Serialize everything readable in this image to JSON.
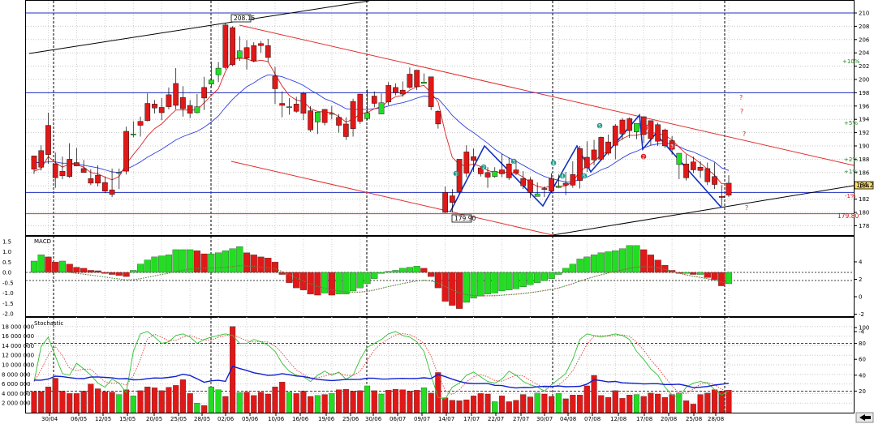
{
  "chart_data": [
    {
      "type": "candlestick",
      "panel": "price",
      "ylim": [
        176.5,
        211
      ],
      "y_ticks": [
        178,
        180,
        182,
        184,
        186,
        188,
        190,
        192,
        194,
        196,
        198,
        200,
        202,
        204,
        206,
        208,
        210
      ],
      "tick_labels": [
        "178",
        "180",
        "182",
        "184",
        "186",
        "188",
        "190",
        "192",
        "194",
        "196",
        "198",
        "200",
        "202",
        "204",
        "206",
        "208",
        "210"
      ],
      "x_labels": [
        "30/04",
        "06/05",
        "12/05",
        "15/05",
        "20/05",
        "25/05",
        "28/05",
        "02/06",
        "05/06",
        "10/06",
        "16/06",
        "19/06",
        "25/06",
        "30/06",
        "06/07",
        "09/07",
        "14/07",
        "17/07",
        "22/07",
        "27/07",
        "30/07",
        "04/08",
        "07/08",
        "12/08",
        "17/08",
        "20/08",
        "25/08",
        "28/08"
      ],
      "candles": [
        [
          188.5,
          187.0,
          186.5,
          185.8
        ],
        [
          189.3,
          190.1,
          186.8,
          186.3
        ],
        [
          193.1,
          195.0,
          188.7,
          187.3
        ],
        [
          187.3,
          189.0,
          185.2,
          183.7
        ],
        [
          186.2,
          188.4,
          185.5,
          185.0
        ],
        [
          188.0,
          190.4,
          185.4,
          185.2
        ],
        [
          187.5,
          189.7,
          187.0,
          187.0
        ],
        [
          186.6,
          187.9,
          186.0,
          186.0
        ],
        [
          185.1,
          186.5,
          184.4,
          184.1
        ],
        [
          185.6,
          187.1,
          184.4,
          183.9
        ],
        [
          184.5,
          185.4,
          183.2,
          182.9
        ],
        [
          183.4,
          186.6,
          182.7,
          182.3
        ],
        [
          186.0,
          186.6,
          186.0,
          183.5
        ],
        [
          192.2,
          192.9,
          186.2,
          185.7
        ],
        [
          191.7,
          193.7,
          191.8,
          191.3
        ],
        [
          193.7,
          194.4,
          193.1,
          191.4
        ],
        [
          196.4,
          197.9,
          193.8,
          193.7
        ],
        [
          196.3,
          196.9,
          195.7,
          194.9
        ],
        [
          195.8,
          197.2,
          195.0,
          193.9
        ],
        [
          197.7,
          198.8,
          195.9,
          195.5
        ],
        [
          199.4,
          201.7,
          196.1,
          195.5
        ],
        [
          197.3,
          199.0,
          195.6,
          194.4
        ],
        [
          196.1,
          196.9,
          194.9,
          194.2
        ],
        [
          195.0,
          197.8,
          195.9,
          194.9
        ],
        [
          198.8,
          200.4,
          197.2,
          195.4
        ],
        [
          199.3,
          202.7,
          199.9,
          198.8
        ],
        [
          200.7,
          202.6,
          201.7,
          199.6
        ],
        [
          208.2,
          208.5,
          201.8,
          201.5
        ],
        [
          207.8,
          208.0,
          202.2,
          202.0
        ],
        [
          203.2,
          206.5,
          204.3,
          202.8
        ],
        [
          204.8,
          205.9,
          203.2,
          201.5
        ],
        [
          205.1,
          205.6,
          202.8,
          202.6
        ],
        [
          205.4,
          205.8,
          205.1,
          204.0
        ],
        [
          205.1,
          206.1,
          203.3,
          202.6
        ],
        [
          200.5,
          201.9,
          198.6,
          196.3
        ],
        [
          196.4,
          198.2,
          196.1,
          194.3
        ],
        [
          195.9,
          197.2,
          195.9,
          194.7
        ],
        [
          196.3,
          197.4,
          195.2,
          195.0
        ],
        [
          197.9,
          198.1,
          194.9,
          193.9
        ],
        [
          195.3,
          196.0,
          192.4,
          192.1
        ],
        [
          193.6,
          194.9,
          195.1,
          191.8
        ],
        [
          195.5,
          195.4,
          193.5,
          193.1
        ],
        [
          194.9,
          196.0,
          194.9,
          194.0
        ],
        [
          194.3,
          194.8,
          193.1,
          192.0
        ],
        [
          193.3,
          194.3,
          191.4,
          190.9
        ],
        [
          196.7,
          197.1,
          192.6,
          191.4
        ],
        [
          197.8,
          197.8,
          193.7,
          193.3
        ],
        [
          194.1,
          198.5,
          195.0,
          193.9
        ],
        [
          197.5,
          198.2,
          196.4,
          195.8
        ],
        [
          194.8,
          197.9,
          196.5,
          196.2
        ],
        [
          199.1,
          199.6,
          196.6,
          196.1
        ],
        [
          198.8,
          199.4,
          198.0,
          197.6
        ],
        [
          198.4,
          199.7,
          197.8,
          197.4
        ],
        [
          200.8,
          201.8,
          198.8,
          198.6
        ],
        [
          201.4,
          201.2,
          198.9,
          198.4
        ],
        [
          199.4,
          200.9,
          199.6,
          199.6
        ],
        [
          200.4,
          199.8,
          195.9,
          195.4
        ],
        [
          195.2,
          195.4,
          193.3,
          192.6
        ],
        [
          183.0,
          183.9,
          180.0,
          179.9
        ],
        [
          182.5,
          183.5,
          181.5,
          180.0
        ],
        [
          188.0,
          187.0,
          183.1,
          182.8
        ],
        [
          189.1,
          190.1,
          185.9,
          185.3
        ],
        [
          188.4,
          189.6,
          187.8,
          186.1
        ],
        [
          186.7,
          186.9,
          185.8,
          185.4
        ],
        [
          186.0,
          186.8,
          185.3,
          183.7
        ],
        [
          185.4,
          186.8,
          186.2,
          185.2
        ],
        [
          186.4,
          188.8,
          185.8,
          185.3
        ],
        [
          187.3,
          188.2,
          185.2,
          184.9
        ],
        [
          186.4,
          187.9,
          185.9,
          185.6
        ],
        [
          185.1,
          186.2,
          184.0,
          183.5
        ],
        [
          184.9,
          185.3,
          183.0,
          182.2
        ],
        [
          182.4,
          184.5,
          182.8,
          182.5
        ],
        [
          183.6,
          183.9,
          183.5,
          182.3
        ],
        [
          185.1,
          185.9,
          183.2,
          182.9
        ],
        [
          183.8,
          185.7,
          183.9,
          183.7
        ],
        [
          184.4,
          186.1,
          184.1,
          182.6
        ],
        [
          185.7,
          187.7,
          184.1,
          183.7
        ],
        [
          189.6,
          190.0,
          184.8,
          183.6
        ],
        [
          188.3,
          190.7,
          186.7,
          186.1
        ],
        [
          189.4,
          190.9,
          187.9,
          187.1
        ],
        [
          191.3,
          191.4,
          188.0,
          187.8
        ],
        [
          190.6,
          191.7,
          188.9,
          188.6
        ],
        [
          193.0,
          193.3,
          190.1,
          188.0
        ],
        [
          193.9,
          194.2,
          191.8,
          190.9
        ],
        [
          194.1,
          194.3,
          192.3,
          191.2
        ],
        [
          192.1,
          192.1,
          193.4,
          191.0
        ],
        [
          194.4,
          194.0,
          191.7,
          190.4
        ],
        [
          193.8,
          193.8,
          191.1,
          190.1
        ],
        [
          193.2,
          193.5,
          190.7,
          190.0
        ],
        [
          192.4,
          192.6,
          190.0,
          189.7
        ],
        [
          190.8,
          191.5,
          189.5,
          188.7
        ],
        [
          187.2,
          187.4,
          188.9,
          185.0
        ],
        [
          187.3,
          188.7,
          185.2,
          184.8
        ],
        [
          187.6,
          188.4,
          186.4,
          185.9
        ],
        [
          186.8,
          187.7,
          186.3,
          185.2
        ],
        [
          186.6,
          187.5,
          184.6,
          184.1
        ],
        [
          185.4,
          187.5,
          184.2,
          183.5
        ],
        [
          182.4,
          184.1,
          182.3,
          180.9
        ],
        [
          184.4,
          185.6,
          182.6,
          182.3
        ]
      ],
      "ma_short": [
        186.2,
        186.6,
        188.4,
        187.5,
        186.8,
        187.3,
        187.2,
        186.8,
        186.0,
        185.8,
        185.3,
        184.9,
        185.4,
        187.3,
        188.7,
        190.0,
        191.5,
        192.6,
        193.3,
        194.4,
        195.4,
        195.4,
        195.4,
        195.4,
        196.5,
        197.6,
        198.6,
        201.2,
        203.0,
        203.2,
        203.1,
        202.7,
        202.9,
        202.7,
        200.8,
        199.0,
        197.6,
        196.9,
        196.7,
        195.6,
        195.2,
        195.1,
        195.0,
        194.4,
        193.6,
        194.0,
        194.8,
        195.0,
        195.6,
        195.9,
        196.8,
        197.4,
        197.6,
        198.4,
        198.9,
        199.1,
        198.0,
        196.6,
        192.0,
        188.3,
        187.2,
        187.0,
        187.3,
        186.9,
        186.3,
        186.0,
        186.1,
        186.0,
        185.9,
        185.3,
        184.5,
        183.9,
        183.7,
        184.0,
        183.9,
        184.0,
        184.6,
        186.2,
        186.9,
        187.6,
        188.7,
        189.2,
        190.3,
        191.1,
        191.6,
        191.6,
        191.9,
        192.0,
        191.9,
        191.6,
        190.9,
        189.8,
        188.8,
        188.2,
        187.4,
        186.5,
        185.6,
        184.3,
        184.3
      ],
      "ma_long": [
        187.5,
        187.5,
        187.6,
        187.6,
        187.4,
        187.4,
        187.3,
        187.1,
        186.9,
        186.7,
        186.4,
        186.1,
        186.0,
        186.5,
        187.0,
        187.6,
        188.3,
        188.9,
        189.5,
        190.2,
        190.9,
        191.4,
        191.8,
        192.2,
        192.8,
        193.6,
        194.5,
        195.8,
        197.0,
        198.0,
        198.9,
        199.5,
        200.2,
        200.7,
        200.6,
        200.4,
        200.0,
        199.6,
        199.1,
        198.4,
        197.8,
        197.1,
        196.7,
        196.2,
        195.6,
        195.5,
        195.5,
        195.5,
        195.6,
        195.7,
        196.0,
        196.3,
        196.5,
        196.8,
        197.2,
        197.5,
        197.4,
        197.1,
        195.9,
        194.6,
        193.6,
        192.7,
        192.0,
        191.2,
        190.4,
        189.5,
        188.8,
        188.2,
        187.7,
        187.1,
        186.5,
        185.9,
        185.4,
        185.1,
        184.8,
        184.6,
        184.6,
        185.0,
        185.3,
        185.8,
        186.4,
        186.8,
        187.5,
        188.2,
        188.8,
        189.2,
        189.7,
        190.1,
        190.3,
        190.4,
        190.3,
        189.9,
        189.4,
        189.1,
        188.6,
        188.1,
        187.6,
        186.7,
        186.3
      ],
      "annotations": {
        "high_label": "208.15",
        "low_label": "179.90",
        "last_price": "184.22",
        "support_label": "179.80",
        "pct_labels": [
          "+10%",
          "+5%",
          "+2%",
          "+1%",
          "-1%"
        ],
        "wave_numbers": [
          "1",
          "2",
          "3",
          "4",
          "5",
          "1",
          "2",
          "3",
          "4",
          "5"
        ],
        "question_marks": [
          "?",
          "?",
          "?",
          "?"
        ]
      }
    },
    {
      "type": "bar",
      "panel": "macd",
      "title": "MACD",
      "tick_labels": [
        "1.5",
        "1.0",
        "0.5",
        "0.0",
        "-0.5",
        "-1.0",
        "-1.5",
        "-2.0"
      ],
      "right_tick_labels": [
        "4",
        "2",
        "0",
        "-2",
        "-4"
      ],
      "values": [
        0.55,
        0.85,
        0.75,
        0.5,
        0.55,
        0.4,
        0.25,
        0.2,
        0.1,
        0.08,
        -0.05,
        -0.1,
        -0.15,
        -0.2,
        0.1,
        0.4,
        0.6,
        0.75,
        0.8,
        0.85,
        1.1,
        1.1,
        1.1,
        1.05,
        0.9,
        0.9,
        0.95,
        1.05,
        1.15,
        1.25,
        0.95,
        0.85,
        0.75,
        0.7,
        0.5,
        -0.1,
        -0.5,
        -0.75,
        -0.85,
        -1.05,
        -1.1,
        -1.0,
        -1.1,
        -1.05,
        -1.05,
        -0.9,
        -0.75,
        -0.55,
        -0.3,
        -0.05,
        0.05,
        0.1,
        0.2,
        0.25,
        0.3,
        0.2,
        -0.2,
        -0.75,
        -1.4,
        -1.6,
        -1.75,
        -1.45,
        -1.25,
        -1.15,
        -1.05,
        -1.0,
        -0.9,
        -0.85,
        -0.8,
        -0.7,
        -0.6,
        -0.5,
        -0.4,
        -0.3,
        -0.1,
        0.2,
        0.4,
        0.65,
        0.75,
        0.85,
        0.95,
        1.0,
        1.05,
        1.15,
        1.3,
        1.3,
        1.1,
        0.85,
        0.6,
        0.35,
        0.1,
        -0.05,
        -0.05,
        -0.1,
        -0.1,
        -0.25,
        -0.35,
        -0.65,
        -0.55
      ]
    },
    {
      "type": "bar",
      "panel": "volume",
      "title": "Stochastic",
      "tick_labels": [
        "18 000 000",
        "16 000 000",
        "14 000 000",
        "12 000 000",
        "10 000 000",
        "8 000 000",
        "6 000 000",
        "4 000 000",
        "2 000 000"
      ],
      "right_tick_labels": [
        "100",
        "80",
        "60",
        "40",
        "20"
      ],
      "values": [
        4.4,
        4.4,
        5.4,
        7.2,
        4.5,
        4.0,
        4.0,
        4.5,
        6.0,
        5.0,
        4.4,
        4.3,
        3.8,
        4.8,
        3.5,
        4.6,
        5.4,
        5.2,
        4.6,
        5.3,
        5.7,
        6.9,
        4.0,
        2.0,
        1.5,
        5.4,
        4.8,
        3.4,
        18.0,
        4.2,
        4.3,
        3.6,
        4.3,
        3.9,
        5.4,
        6.4,
        4.3,
        4.0,
        4.5,
        3.4,
        3.6,
        3.8,
        4.0,
        4.8,
        4.9,
        4.5,
        4.6,
        5.6,
        4.6,
        3.9,
        4.7,
        4.9,
        4.8,
        4.5,
        4.7,
        5.2,
        4.1,
        8.4,
        3.1,
        2.6,
        2.5,
        2.7,
        3.5,
        4.0,
        3.9,
        2.3,
        3.5,
        2.3,
        2.6,
        3.8,
        3.3,
        4.1,
        3.9,
        3.4,
        4.0,
        2.9,
        3.7,
        3.7,
        5.6,
        7.8,
        3.6,
        3.2,
        4.6,
        3.0,
        3.7,
        3.8,
        3.4,
        4.1,
        3.9,
        3.2,
        3.8,
        4.1,
        2.5,
        1.8,
        3.8,
        4.1,
        4.8,
        4.5,
        4.7
      ],
      "stoch_k": [
        32,
        76,
        88,
        64,
        42,
        40,
        55,
        48,
        40,
        30,
        25,
        35,
        30,
        18,
        70,
        92,
        95,
        88,
        80,
        82,
        90,
        92,
        88,
        80,
        85,
        88,
        90,
        92,
        90,
        80,
        80,
        85,
        82,
        78,
        70,
        55,
        45,
        40,
        38,
        32,
        40,
        45,
        40,
        44,
        35,
        40,
        60,
        75,
        80,
        85,
        92,
        95,
        90,
        88,
        82,
        70,
        40,
        12,
        10,
        25,
        30,
        40,
        44,
        38,
        32,
        30,
        35,
        45,
        40,
        32,
        28,
        25,
        20,
        28,
        35,
        42,
        60,
        85,
        92,
        90,
        88,
        90,
        92,
        90,
        85,
        70,
        60,
        48,
        40,
        25,
        15,
        12,
        25,
        30,
        32,
        30,
        22,
        15,
        20
      ]
    }
  ]
}
